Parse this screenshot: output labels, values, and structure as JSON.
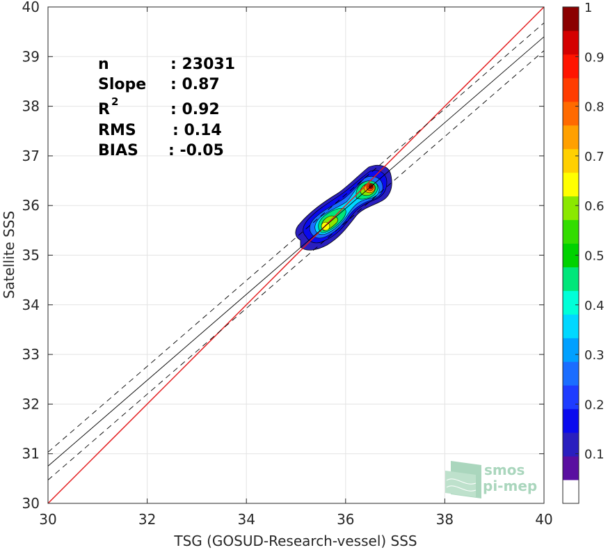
{
  "chart_data": {
    "type": "heatmap",
    "title": "",
    "xlabel": "TSG (GOSUD-Research-vessel) SSS",
    "ylabel": "Satellite SSS",
    "xlim": [
      30,
      40
    ],
    "ylim": [
      30,
      40
    ],
    "xticks": [
      30,
      32,
      34,
      36,
      38,
      40
    ],
    "yticks": [
      30,
      31,
      32,
      33,
      34,
      35,
      36,
      37,
      38,
      39,
      40
    ],
    "grid": true,
    "stats": {
      "n_label": "n",
      "n_value": ": 23031",
      "slope_label": "Slope",
      "slope_value": ": 0.87",
      "r2_label": "R",
      "r2_sup": "2",
      "r2_value": ": 0.92",
      "rms_label": "RMS",
      "rms_value": ": 0.14",
      "bias_label": "BIAS",
      "bias_value": ": -0.05"
    },
    "lines": {
      "identity": {
        "color": "#e31a1c",
        "slope": 1,
        "intercept": 0
      },
      "fit": {
        "color": "#000000",
        "slope": 0.87,
        "points": [
          [
            30,
            30.75
          ],
          [
            40,
            39.4
          ]
        ]
      },
      "fit_plus_2rms": {
        "style": "dashed",
        "points": [
          [
            30,
            31.03
          ],
          [
            40,
            39.68
          ]
        ]
      },
      "fit_minus_2rms": {
        "style": "dashed",
        "points": [
          [
            30,
            30.47
          ],
          [
            40,
            39.12
          ]
        ]
      }
    },
    "density_peaks": [
      {
        "x": 36.45,
        "y": 36.35,
        "value": 1.0
      },
      {
        "x": 35.6,
        "y": 35.55,
        "value": 0.65
      }
    ],
    "colorbar": {
      "range": [
        0,
        1
      ],
      "ticks": [
        "0.1",
        "0.2",
        "0.3",
        "0.4",
        "0.5",
        "0.6",
        "0.7",
        "0.8",
        "0.9",
        "1"
      ],
      "colors": [
        "#ffffff",
        "#5a0fa0",
        "#2a1fbf",
        "#0a0aee",
        "#1e3cff",
        "#1a6dff",
        "#00a0ff",
        "#00d8ff",
        "#00ffd8",
        "#00e67a",
        "#00d200",
        "#33dd00",
        "#8be800",
        "#ffff00",
        "#ffd000",
        "#ffa000",
        "#ff6a00",
        "#ff3c00",
        "#ff1400",
        "#d40000",
        "#8b0000"
      ]
    }
  },
  "watermark": {
    "line1": "smos",
    "line2": "pi-mep"
  }
}
